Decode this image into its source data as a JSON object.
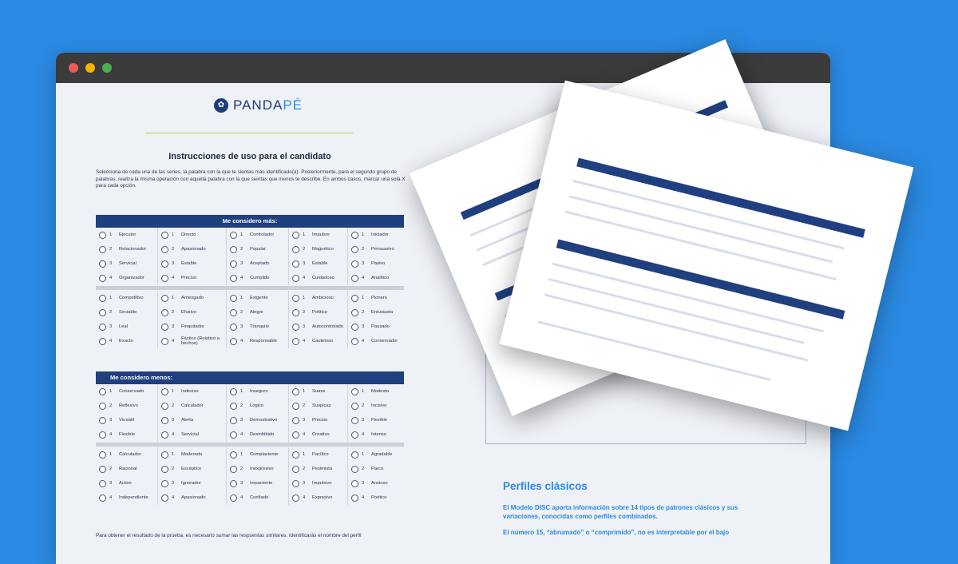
{
  "window": {
    "dots": [
      "#ee5a52",
      "#f4b400",
      "#4caf50"
    ]
  },
  "brand": {
    "name_left": "PANDA",
    "name_right": "PÉ"
  },
  "doc": {
    "title": "Instrucciones de uso para el candidato",
    "instructions": "Selecciona de cada una de las series, la palabra con la que te sientas más identificado(a). Posteriormente, para el segundo grupo de palabras, realiza la misma operación con aquella palabra con la que sientas que menos te describe. En ambos casos, marcar una sola X para cada opción.",
    "footer": "Para obtener el resultado de la prueba, es necesario sumar las respuestas similares. Identificarás el nombre del perfil"
  },
  "table_mas": {
    "header": "Me considero más:",
    "rows": [
      [
        [
          "1",
          "Ejecutor"
        ],
        [
          "1",
          "Directo"
        ],
        [
          "1",
          "Controlador"
        ],
        [
          "1",
          "Impulsor"
        ],
        [
          "1",
          "Iniciador"
        ]
      ],
      [
        [
          "2",
          "Relacionador"
        ],
        [
          "2",
          "Apasionado"
        ],
        [
          "2",
          "Popular"
        ],
        [
          "2",
          "Magnético"
        ],
        [
          "2",
          "Persuasivo"
        ]
      ],
      [
        [
          "3",
          "Servicial"
        ],
        [
          "3",
          "Estable"
        ],
        [
          "3",
          "Aceptado"
        ],
        [
          "3",
          "Estable"
        ],
        [
          "3",
          "Pasivo"
        ]
      ],
      [
        [
          "4",
          "Organizador"
        ],
        [
          "4",
          "Preciso"
        ],
        [
          "4",
          "Cumplido"
        ],
        [
          "4",
          "Cuidadoso"
        ],
        [
          "4",
          "Analítico"
        ]
      ],
      "sep",
      [
        [
          "1",
          "Competitivo"
        ],
        [
          "1",
          "Arriesgado"
        ],
        [
          "1",
          "Exigente"
        ],
        [
          "1",
          "Ambicioso"
        ],
        [
          "1",
          "Pionero"
        ]
      ],
      [
        [
          "2",
          "Sociable"
        ],
        [
          "2",
          "Efusivo"
        ],
        [
          "2",
          "Alegre"
        ],
        [
          "2",
          "Político"
        ],
        [
          "2",
          "Entusiasta"
        ]
      ],
      [
        [
          "3",
          "Leal"
        ],
        [
          "3",
          "Finquitador"
        ],
        [
          "3",
          "Tranquilo"
        ],
        [
          "3",
          "Autocontrolado"
        ],
        [
          "3",
          "Pausado"
        ]
      ],
      [
        [
          "4",
          "Exacto"
        ],
        [
          "4",
          "Fáctico (Relativo a hechos)"
        ],
        [
          "4",
          "Responsable"
        ],
        [
          "4",
          "Cauteloso"
        ],
        [
          "4",
          "Conservador"
        ]
      ]
    ]
  },
  "table_menos": {
    "header": "Me considero menos:",
    "rows": [
      [
        [
          "1",
          "Conservado"
        ],
        [
          "1",
          "Indeciso"
        ],
        [
          "1",
          "Inseguro"
        ],
        [
          "1",
          "Suave"
        ],
        [
          "1",
          "Modesto"
        ]
      ],
      [
        [
          "2",
          "Reflexivo"
        ],
        [
          "2",
          "Calculador"
        ],
        [
          "2",
          "Lógico"
        ],
        [
          "2",
          "Suspicaz"
        ],
        [
          "2",
          "Incisivo"
        ]
      ],
      [
        [
          "3",
          "Versátil"
        ],
        [
          "3",
          "Alerta"
        ],
        [
          "3",
          "Demostrativo"
        ],
        [
          "3",
          "Preciso"
        ],
        [
          "3",
          "Flexible"
        ]
      ],
      [
        [
          "4",
          "Flexible"
        ],
        [
          "4",
          "Servicial"
        ],
        [
          "4",
          "Desinhibido"
        ],
        [
          "4",
          "Creativo"
        ],
        [
          "4",
          "Intenso"
        ]
      ],
      "sep",
      [
        [
          "1",
          "Calculador"
        ],
        [
          "1",
          "Moderado"
        ],
        [
          "1",
          "Complaciente"
        ],
        [
          "1",
          "Pacífico"
        ],
        [
          "1",
          "Agradable"
        ]
      ],
      [
        [
          "2",
          "Racional"
        ],
        [
          "2",
          "Escéptico"
        ],
        [
          "2",
          "Inexpresivo"
        ],
        [
          "2",
          "Pesimista"
        ],
        [
          "2",
          "Parco"
        ]
      ],
      [
        [
          "3",
          "Activo"
        ],
        [
          "3",
          "Ignorador"
        ],
        [
          "3",
          "Impaciente"
        ],
        [
          "3",
          "Impulsivo"
        ],
        [
          "3",
          "Ansioso"
        ]
      ],
      [
        [
          "4",
          "Independiente"
        ],
        [
          "4",
          "Apasionado"
        ],
        [
          "4",
          "Confiado"
        ],
        [
          "4",
          "Expresivo"
        ],
        [
          "4",
          "Poético"
        ]
      ]
    ]
  },
  "perfiles": {
    "heading": "Perfiles clásicos",
    "p1": "El Modelo DISC aporta información sobre 14 tipos de patrones clásicos y sus variaciones, conocidas como perfiles combinados.",
    "p2": "El número 15, “abrumado” o “comprimido”, no es interpretable por el bajo"
  }
}
